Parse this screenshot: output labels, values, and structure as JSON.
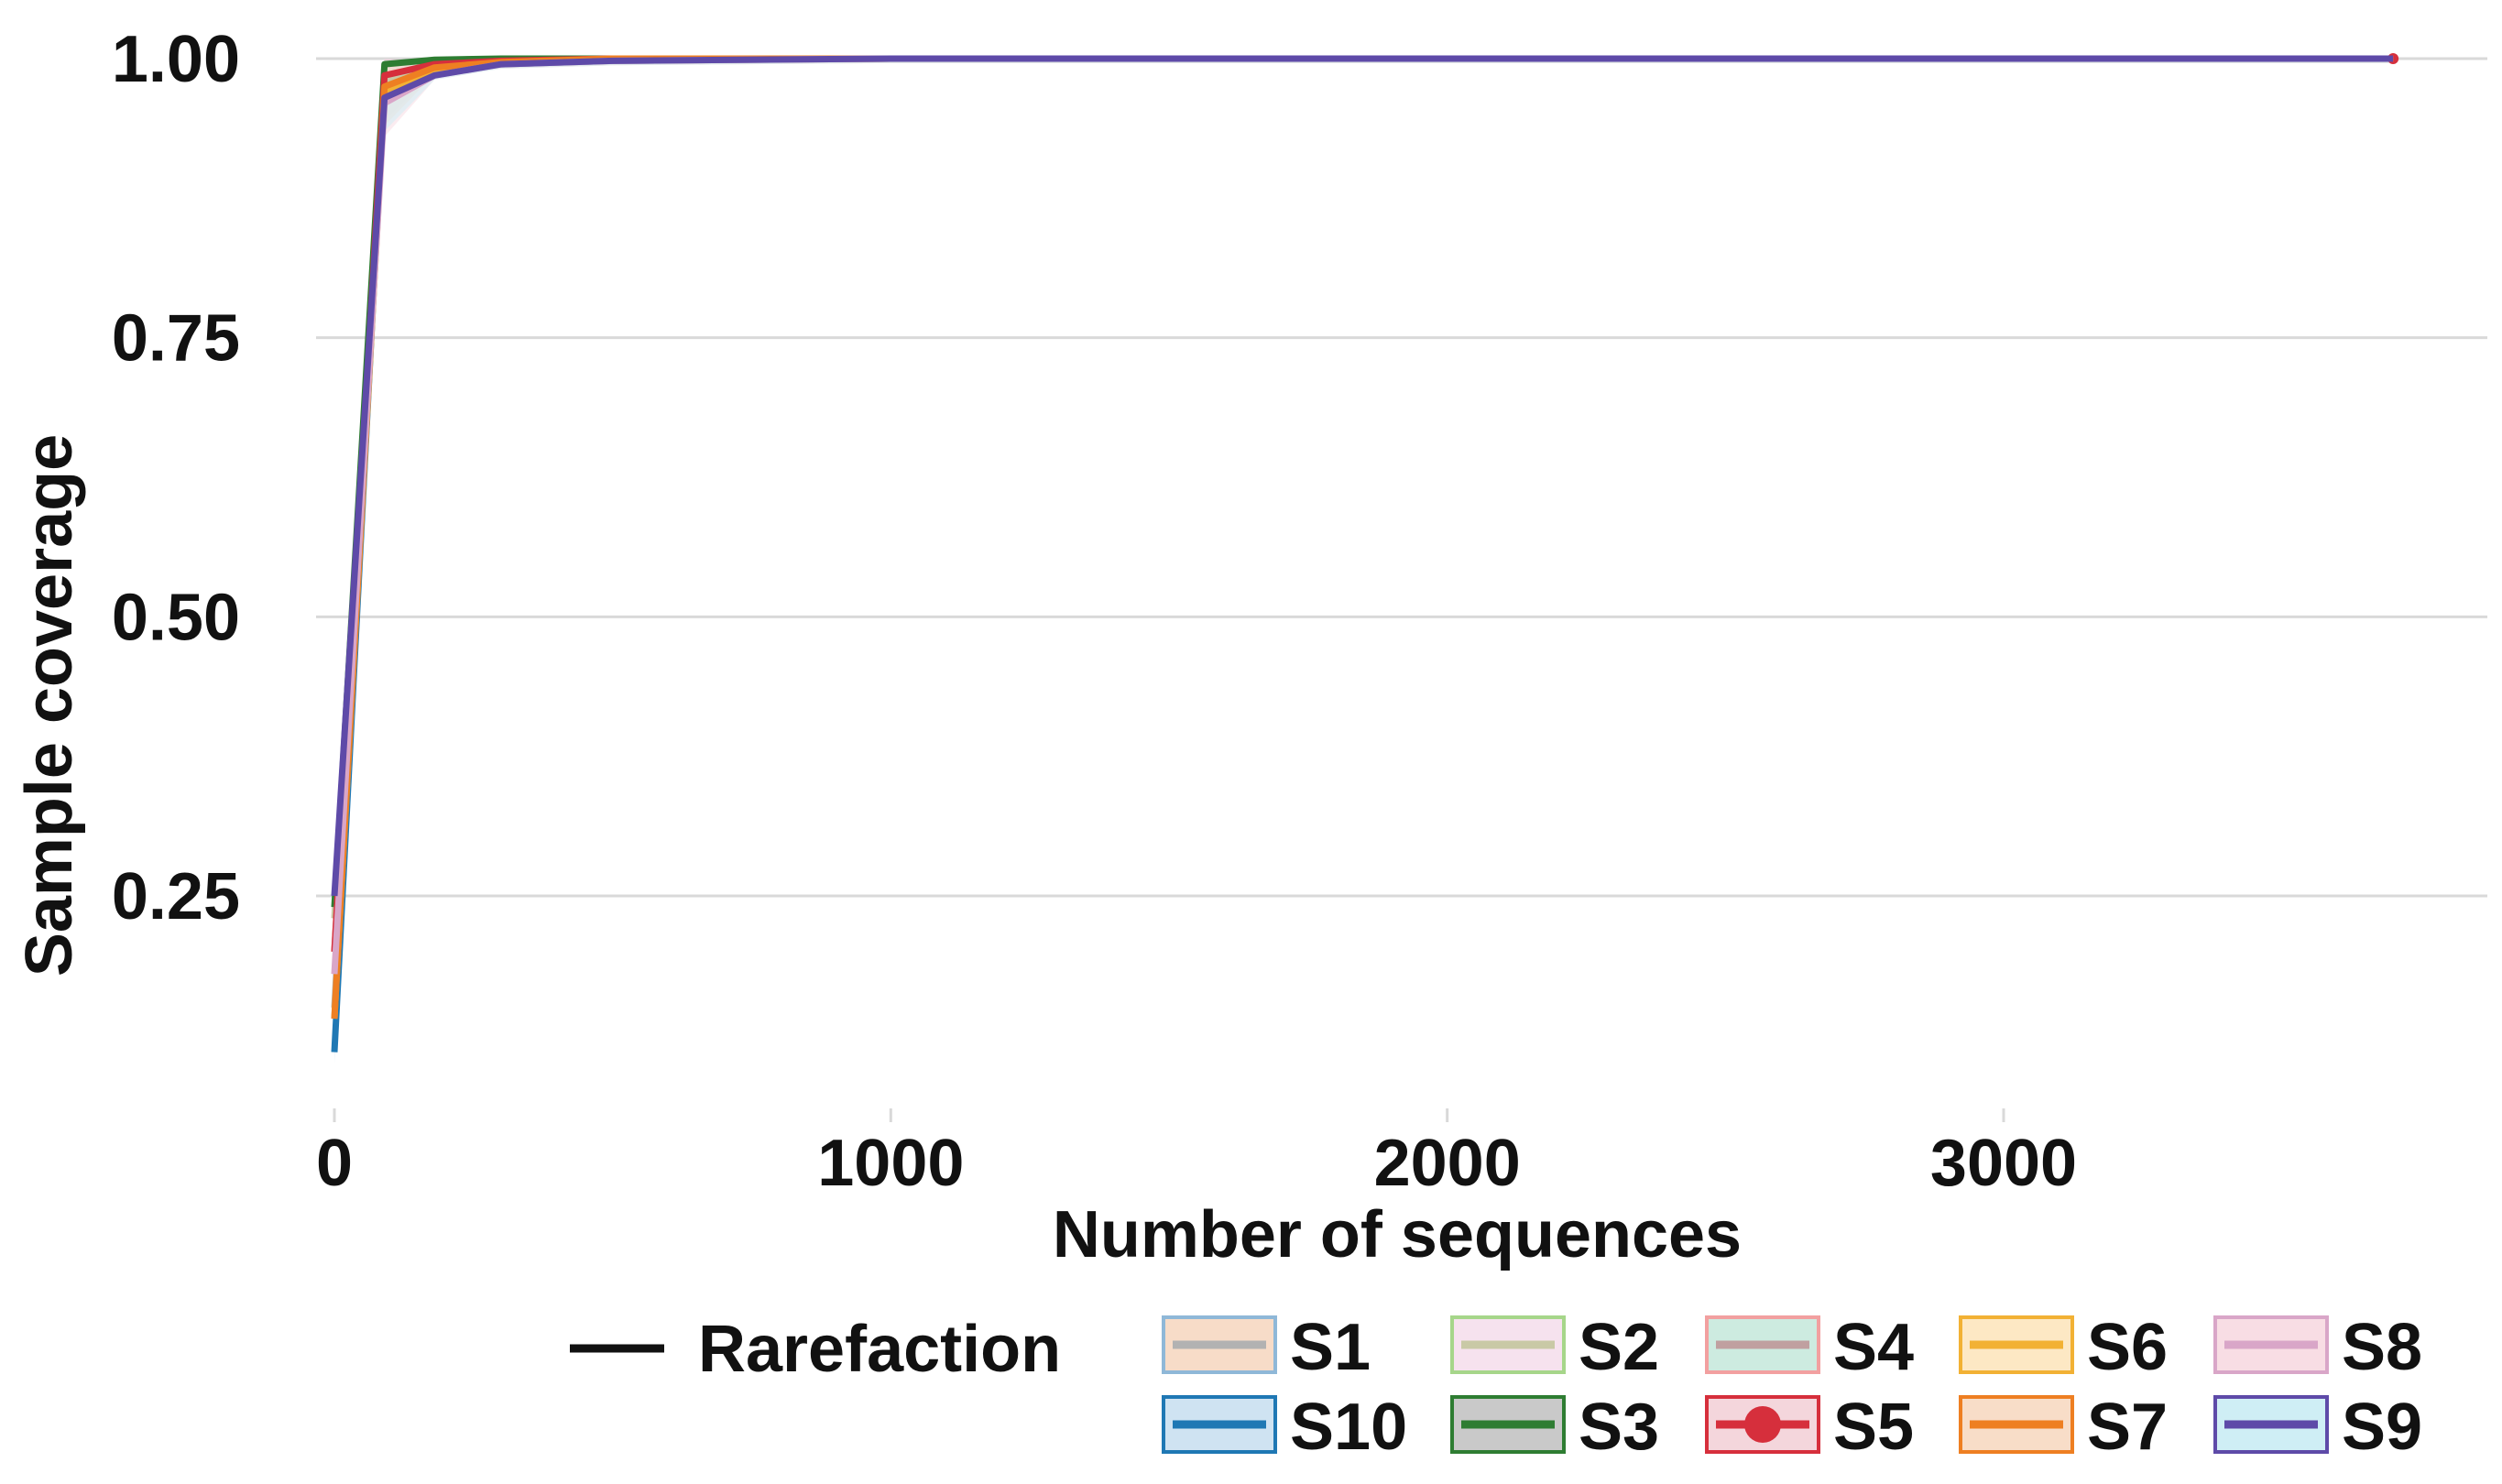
{
  "chart_data": {
    "type": "line",
    "xlabel": "Number of sequences",
    "ylabel": "Sample coverage",
    "xlim": [
      0,
      3700
    ],
    "ylim": [
      0.1,
      1.0
    ],
    "x_ticks": [
      {
        "value": 0,
        "label": "0"
      },
      {
        "value": 1000,
        "label": "1000"
      },
      {
        "value": 2000,
        "label": "2000"
      },
      {
        "value": 3000,
        "label": "3000"
      }
    ],
    "y_ticks": [
      {
        "value": 0.25,
        "label": "0.25"
      },
      {
        "value": 0.5,
        "label": "0.50"
      },
      {
        "value": 0.75,
        "label": "0.75"
      },
      {
        "value": 1.0,
        "label": "1.00"
      }
    ],
    "grid": true,
    "legend": {
      "placement": "bottom",
      "method_label": "Rarefaction",
      "method_color": "#111111"
    },
    "series": [
      {
        "name": "S1",
        "line_color": "#b2b2b2",
        "fill_color": "#f7dcc8",
        "border_color": "#8fb8d8",
        "x": [
          0,
          90,
          180,
          300,
          500,
          1000,
          3700
        ],
        "y": [
          0.15,
          0.97,
          0.99,
          0.995,
          0.998,
          1.0,
          1.0
        ]
      },
      {
        "name": "S10",
        "line_color": "#1f78b4",
        "fill_color": "#cfe3f2",
        "border_color": "#1f78b4",
        "x": [
          0,
          90,
          180,
          300,
          500,
          1000,
          3700
        ],
        "y": [
          0.11,
          0.98,
          0.995,
          0.998,
          1.0,
          1.0,
          1.0
        ]
      },
      {
        "name": "S2",
        "line_color": "#c9c9a6",
        "fill_color": "#f6e2ee",
        "border_color": "#a6d68a",
        "x": [
          0,
          90,
          180,
          300,
          500,
          1000,
          3700
        ],
        "y": [
          0.23,
          0.98,
          0.993,
          0.998,
          1.0,
          1.0,
          1.0
        ]
      },
      {
        "name": "S3",
        "line_color": "#2e7d32",
        "fill_color": "#c9c9c9",
        "border_color": "#2e7d32",
        "x": [
          0,
          90,
          180,
          300,
          500,
          1000,
          3700
        ],
        "y": [
          0.24,
          0.995,
          0.999,
          1.0,
          1.0,
          1.0,
          1.0
        ]
      },
      {
        "name": "S4",
        "line_color": "#c0a0a0",
        "fill_color": "#cdebe0",
        "border_color": "#f2a0a0",
        "x": [
          0,
          90,
          180,
          300,
          500,
          1000,
          3700
        ],
        "y": [
          0.2,
          0.975,
          0.99,
          0.996,
          0.999,
          1.0,
          1.0
        ]
      },
      {
        "name": "S5",
        "line_color": "#d62f3c",
        "fill_color": "#f4d6dc",
        "border_color": "#d62f3c",
        "marker": "circle",
        "x": [
          0,
          90,
          180,
          300,
          500,
          1000,
          3700
        ],
        "y": [
          0.2,
          0.985,
          0.995,
          0.998,
          1.0,
          1.0,
          1.0
        ]
      },
      {
        "name": "S6",
        "line_color": "#f2b134",
        "fill_color": "#fde8c4",
        "border_color": "#f2b134",
        "x": [
          0,
          90,
          180,
          300,
          500,
          1000,
          3700
        ],
        "y": [
          0.14,
          0.97,
          0.99,
          0.996,
          0.999,
          1.0,
          1.0
        ]
      },
      {
        "name": "S7",
        "line_color": "#ee7f22",
        "fill_color": "#f8ddc8",
        "border_color": "#ee7f22",
        "x": [
          0,
          90,
          180,
          300,
          500,
          1000,
          3700
        ],
        "y": [
          0.14,
          0.975,
          0.992,
          0.997,
          1.0,
          1.0,
          1.0
        ]
      },
      {
        "name": "S8",
        "line_color": "#d9a6c8",
        "fill_color": "#f8dde4",
        "border_color": "#d9a6c8",
        "x": [
          0,
          90,
          180,
          300,
          500,
          1000,
          3700
        ],
        "y": [
          0.18,
          0.96,
          0.985,
          0.995,
          0.998,
          1.0,
          1.0
        ]
      },
      {
        "name": "S9",
        "line_color": "#5e4aa8",
        "fill_color": "#cfeef5",
        "border_color": "#5e4aa8",
        "x": [
          0,
          90,
          180,
          300,
          500,
          1000,
          3700
        ],
        "y": [
          0.25,
          0.965,
          0.985,
          0.995,
          0.998,
          1.0,
          1.0
        ]
      }
    ]
  }
}
